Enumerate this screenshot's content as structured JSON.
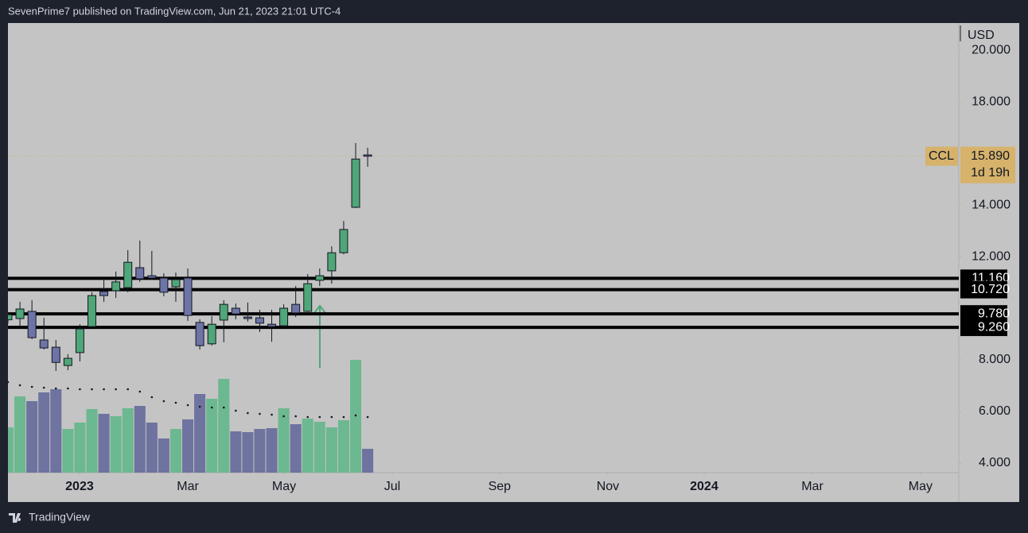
{
  "header": "SevenPrime7 published on TradingView.com, Jun 21, 2023 21:01 UTC-4",
  "footer": "TradingView",
  "chart_data": {
    "type": "candlestick",
    "symbol": "CCL",
    "currency": "USD",
    "countdown": "1d 19h",
    "last_price": {
      "value": 15.89,
      "label": "15.890"
    },
    "up_color": "#4fa678",
    "down_color": "#6d74a6",
    "volume_up_color": "#6cb890",
    "volume_down_color": "#6e739f",
    "x": [
      0,
      1,
      2,
      3,
      4,
      5,
      6,
      7,
      8,
      9,
      10,
      11,
      12,
      13,
      14,
      15,
      16,
      17,
      18,
      19,
      20,
      21,
      22,
      23,
      24,
      25,
      26,
      27,
      28,
      29,
      30
    ],
    "open": [
      9.55,
      9.6,
      9.88,
      8.77,
      8.49,
      7.78,
      8.28,
      9.29,
      10.65,
      10.68,
      10.8,
      11.57,
      11.26,
      11.17,
      10.83,
      11.17,
      9.45,
      8.62,
      9.54,
      10.0,
      9.66,
      9.63,
      9.38,
      9.32,
      10.15,
      9.88,
      11.08,
      11.45,
      12.15,
      13.91,
      15.94
    ],
    "high": [
      9.85,
      10.25,
      10.31,
      9.63,
      8.77,
      8.22,
      9.38,
      10.62,
      11.17,
      11.42,
      12.25,
      12.62,
      12.22,
      11.35,
      11.38,
      11.54,
      9.57,
      9.69,
      10.31,
      10.18,
      10.22,
      9.94,
      9.94,
      10.15,
      10.86,
      11.32,
      11.54,
      12.4,
      13.38,
      16.4,
      16.22
    ],
    "low": [
      9.4,
      9.26,
      8.8,
      8.4,
      7.57,
      7.6,
      7.94,
      9.26,
      10.25,
      10.4,
      10.62,
      11.02,
      11.11,
      10.46,
      10.25,
      9.51,
      8.4,
      8.55,
      8.68,
      9.57,
      9.48,
      9.08,
      8.7,
      9.26,
      9.66,
      9.78,
      10.86,
      10.95,
      12.09,
      13.88,
      15.48
    ],
    "close": [
      9.75,
      9.97,
      8.86,
      8.46,
      7.9,
      8.06,
      9.2,
      10.49,
      10.49,
      11.02,
      11.78,
      11.14,
      11.17,
      10.62,
      11.11,
      9.72,
      8.55,
      9.38,
      10.15,
      9.78,
      9.6,
      9.42,
      9.29,
      10.0,
      9.82,
      10.95,
      11.26,
      12.15,
      13.05,
      15.78,
      15.89
    ],
    "volume": [
      57,
      96,
      90,
      101,
      105,
      55,
      63,
      80,
      74,
      71,
      81,
      84,
      63,
      43,
      55,
      67,
      99,
      93,
      118,
      52,
      51,
      55,
      56,
      81,
      61,
      68,
      64,
      57,
      66,
      142,
      30
    ],
    "volume_ma": [
      114,
      110,
      108,
      107,
      106,
      106,
      105,
      105,
      105,
      105,
      105,
      102,
      95,
      90,
      88,
      85,
      83,
      82,
      82,
      78,
      75,
      74,
      73,
      71,
      71,
      70,
      70,
      70,
      70,
      72,
      70
    ],
    "levels": [
      {
        "value": 11.16,
        "label": "11.160"
      },
      {
        "value": 10.72,
        "label": "10.720"
      },
      {
        "value": 9.78,
        "label": "9.780"
      },
      {
        "value": 9.26,
        "label": "9.260"
      }
    ],
    "xlim": [
      0,
      79.3
    ],
    "xticks": [
      {
        "value": 5.97,
        "label": "2023"
      },
      {
        "value": 15.0,
        "label": "Mar"
      },
      {
        "value": 23.03,
        "label": "May"
      },
      {
        "value": 32.05,
        "label": "Jul"
      },
      {
        "value": 41.0,
        "label": "Sep"
      },
      {
        "value": 50.03,
        "label": "Nov"
      },
      {
        "value": 58.06,
        "label": "2024"
      },
      {
        "value": 67.09,
        "label": "Mar"
      },
      {
        "value": 76.11,
        "label": "May"
      }
    ],
    "ylim": [
      3.63,
      21.05
    ],
    "yticks": [
      {
        "value": 20,
        "label": "20.000"
      },
      {
        "value": 18,
        "label": "18.000"
      },
      {
        "value": 14,
        "label": "14.000"
      },
      {
        "value": 12,
        "label": "12.000"
      },
      {
        "value": 8,
        "label": "8.000"
      },
      {
        "value": 6,
        "label": "6.000"
      },
      {
        "value": 4,
        "label": "4.000"
      }
    ]
  }
}
